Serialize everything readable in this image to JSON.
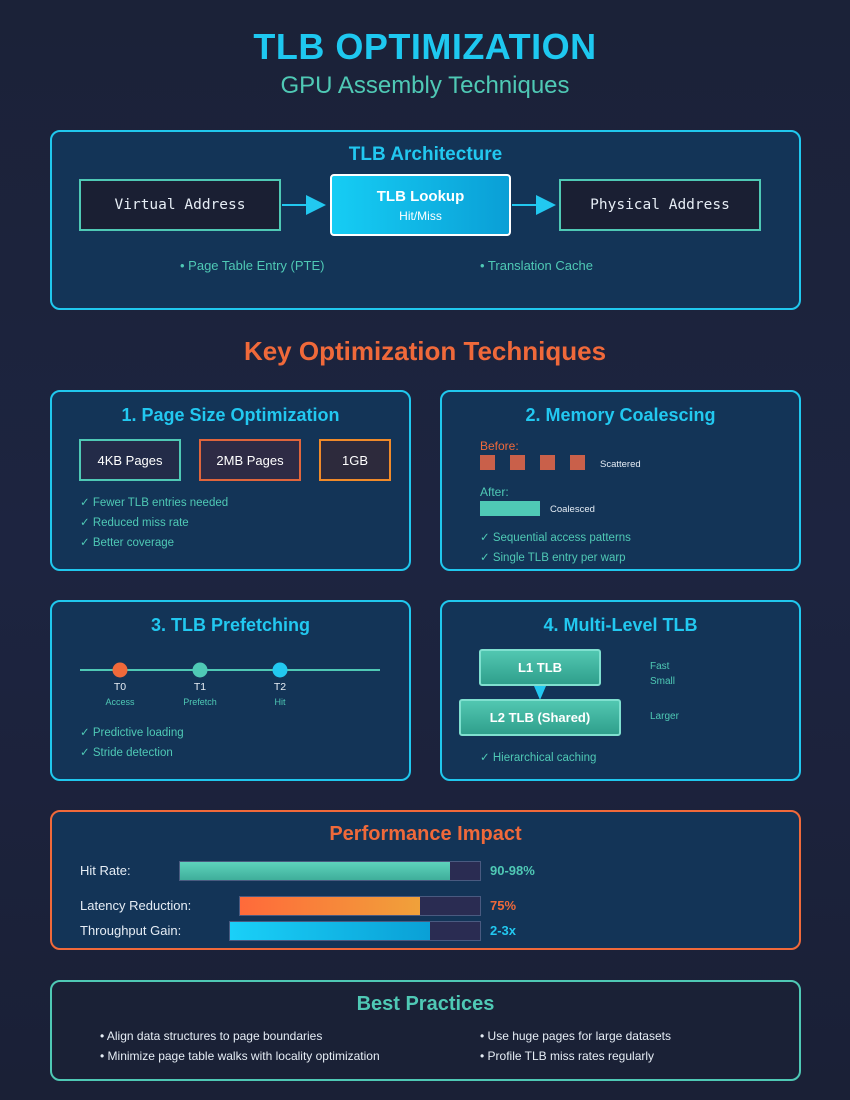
{
  "header": {
    "title": "TLB OPTIMIZATION",
    "subtitle": "GPU Assembly Techniques"
  },
  "architecture": {
    "title": "TLB Architecture",
    "virtual_address": "Virtual Address",
    "tlb_lookup": "TLB Lookup",
    "tlb_sub": "Hit/Miss",
    "physical_address": "Physical Address",
    "note_left": "• Page Table Entry (PTE)",
    "note_right": "• Translation Cache"
  },
  "techniques_heading": "Key Optimization Techniques",
  "page_size": {
    "title": "1. Page Size Optimization",
    "boxes": [
      "4KB Pages",
      "2MB Pages",
      "1GB"
    ],
    "benefits": [
      "✓ Fewer TLB entries needed",
      "✓ Reduced miss rate",
      "✓ Better coverage"
    ]
  },
  "coalescing": {
    "title": "2. Memory Coalescing",
    "before_label": "Before:",
    "scattered_label": "Scattered",
    "after_label": "After:",
    "coalesced_label": "Coalesced",
    "benefits": [
      "✓ Sequential access patterns",
      "✓ Single TLB entry per warp"
    ]
  },
  "prefetching": {
    "title": "3. TLB Prefetching",
    "points": [
      {
        "label": "T0",
        "sub": "Access"
      },
      {
        "label": "T1",
        "sub": "Prefetch"
      },
      {
        "label": "T2",
        "sub": "Hit"
      }
    ],
    "benefits": [
      "✓ Predictive loading",
      "✓ Stride detection"
    ]
  },
  "multilevel": {
    "title": "4. Multi-Level TLB",
    "l1": "L1 TLB",
    "l2": "L2 TLB (Shared)",
    "l1_note_1": "Fast",
    "l1_note_2": "Small",
    "l2_note": "Larger",
    "benefit": "✓ Hierarchical caching"
  },
  "performance": {
    "title": "Performance Impact",
    "metrics": [
      {
        "label": "Hit Rate:",
        "value": "90-98%",
        "level": 0.9,
        "color": "#4fc9b5"
      },
      {
        "label": "Latency Reduction:",
        "value": "75%",
        "level": 0.75,
        "color": "#f0693a"
      },
      {
        "label": "Throughput Gain:",
        "value": "2-3x",
        "level": 0.8,
        "color": "#22c8f0"
      }
    ]
  },
  "best_practices": {
    "title": "Best Practices",
    "items": [
      "• Align data structures to page boundaries",
      "• Use huge pages for large datasets",
      "• Minimize page table walks with locality optimization",
      "• Profile TLB miss rates regularly"
    ]
  },
  "colors": {
    "accent_blue": "#22c8f0",
    "accent_teal": "#4fc9b5",
    "accent_orange": "#f0693a",
    "panel_bg": "#133457"
  }
}
